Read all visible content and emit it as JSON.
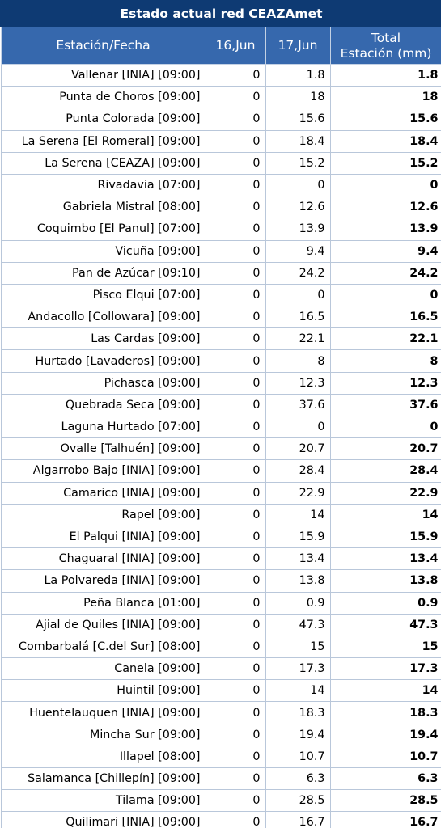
{
  "title": "Estado actual red CEAZAmet",
  "columns": {
    "station": "Estación/Fecha",
    "day1": "16,Jun",
    "day2": "17,Jun",
    "total_line1": "Total",
    "total_line2": "Estación (mm)"
  },
  "rows": [
    {
      "station": "Vallenar [INIA] [09:00]",
      "d1": "0",
      "d2": "1.8",
      "total": "1.8"
    },
    {
      "station": "Punta de Choros [09:00]",
      "d1": "0",
      "d2": "18",
      "total": "18"
    },
    {
      "station": "Punta Colorada [09:00]",
      "d1": "0",
      "d2": "15.6",
      "total": "15.6"
    },
    {
      "station": "La Serena [El Romeral] [09:00]",
      "d1": "0",
      "d2": "18.4",
      "total": "18.4"
    },
    {
      "station": "La Serena [CEAZA] [09:00]",
      "d1": "0",
      "d2": "15.2",
      "total": "15.2"
    },
    {
      "station": "Rivadavia [07:00]",
      "d1": "0",
      "d2": "0",
      "total": "0"
    },
    {
      "station": "Gabriela Mistral [08:00]",
      "d1": "0",
      "d2": "12.6",
      "total": "12.6"
    },
    {
      "station": "Coquimbo [El Panul] [07:00]",
      "d1": "0",
      "d2": "13.9",
      "total": "13.9"
    },
    {
      "station": "Vicuña [09:00]",
      "d1": "0",
      "d2": "9.4",
      "total": "9.4"
    },
    {
      "station": "Pan de Azúcar [09:10]",
      "d1": "0",
      "d2": "24.2",
      "total": "24.2"
    },
    {
      "station": "Pisco Elqui [07:00]",
      "d1": "0",
      "d2": "0",
      "total": "0"
    },
    {
      "station": "Andacollo [Collowara] [09:00]",
      "d1": "0",
      "d2": "16.5",
      "total": "16.5"
    },
    {
      "station": "Las Cardas [09:00]",
      "d1": "0",
      "d2": "22.1",
      "total": "22.1"
    },
    {
      "station": "Hurtado [Lavaderos] [09:00]",
      "d1": "0",
      "d2": "8",
      "total": "8"
    },
    {
      "station": "Pichasca [09:00]",
      "d1": "0",
      "d2": "12.3",
      "total": "12.3"
    },
    {
      "station": "Quebrada Seca [09:00]",
      "d1": "0",
      "d2": "37.6",
      "total": "37.6"
    },
    {
      "station": "Laguna Hurtado [07:00]",
      "d1": "0",
      "d2": "0",
      "total": "0"
    },
    {
      "station": "Ovalle [Talhuén] [09:00]",
      "d1": "0",
      "d2": "20.7",
      "total": "20.7"
    },
    {
      "station": "Algarrobo Bajo [INIA] [09:00]",
      "d1": "0",
      "d2": "28.4",
      "total": "28.4"
    },
    {
      "station": "Camarico [INIA] [09:00]",
      "d1": "0",
      "d2": "22.9",
      "total": "22.9"
    },
    {
      "station": "Rapel [09:00]",
      "d1": "0",
      "d2": "14",
      "total": "14"
    },
    {
      "station": "El Palqui [INIA] [09:00]",
      "d1": "0",
      "d2": "15.9",
      "total": "15.9"
    },
    {
      "station": "Chaguaral [INIA] [09:00]",
      "d1": "0",
      "d2": "13.4",
      "total": "13.4"
    },
    {
      "station": "La Polvareda [INIA] [09:00]",
      "d1": "0",
      "d2": "13.8",
      "total": "13.8"
    },
    {
      "station": "Peña Blanca [01:00]",
      "d1": "0",
      "d2": "0.9",
      "total": "0.9"
    },
    {
      "station": "Ajial de Quiles [INIA] [09:00]",
      "d1": "0",
      "d2": "47.3",
      "total": "47.3"
    },
    {
      "station": "Combarbalá [C.del Sur] [08:00]",
      "d1": "0",
      "d2": "15",
      "total": "15"
    },
    {
      "station": "Canela [09:00]",
      "d1": "0",
      "d2": "17.3",
      "total": "17.3"
    },
    {
      "station": "Huintil [09:00]",
      "d1": "0",
      "d2": "14",
      "total": "14"
    },
    {
      "station": "Huentelauquen [INIA] [09:00]",
      "d1": "0",
      "d2": "18.3",
      "total": "18.3"
    },
    {
      "station": "Mincha Sur [09:00]",
      "d1": "0",
      "d2": "19.4",
      "total": "19.4"
    },
    {
      "station": "Illapel [08:00]",
      "d1": "0",
      "d2": "10.7",
      "total": "10.7"
    },
    {
      "station": "Salamanca [Chillepín] [09:00]",
      "d1": "0",
      "d2": "6.3",
      "total": "6.3"
    },
    {
      "station": "Tilama [09:00]",
      "d1": "0",
      "d2": "28.5",
      "total": "28.5"
    },
    {
      "station": "Quilimari [INIA] [09:00]",
      "d1": "0",
      "d2": "16.7",
      "total": "16.7"
    }
  ]
}
